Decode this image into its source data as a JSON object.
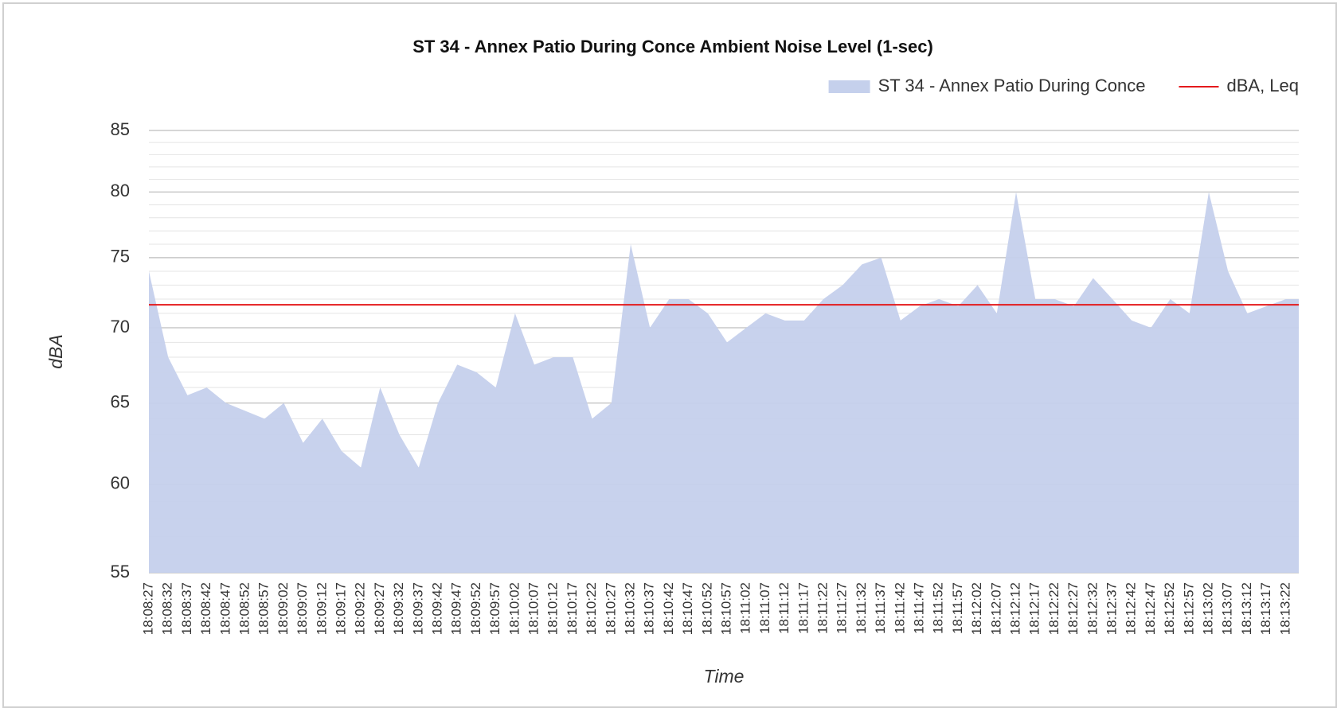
{
  "chart_data": {
    "type": "area",
    "title": "ST 34 - Annex Patio During Conce Ambient Noise Level (1-sec)",
    "xlabel": "Time",
    "ylabel": "dBA",
    "categories": [
      "18:08:27",
      "18:08:32",
      "18:08:37",
      "18:08:42",
      "18:08:47",
      "18:08:52",
      "18:08:57",
      "18:09:02",
      "18:09:07",
      "18:09:12",
      "18:09:17",
      "18:09:22",
      "18:09:27",
      "18:09:32",
      "18:09:37",
      "18:09:42",
      "18:09:47",
      "18:09:52",
      "18:09:57",
      "18:10:02",
      "18:10:07",
      "18:10:12",
      "18:10:17",
      "18:10:22",
      "18:10:27",
      "18:10:32",
      "18:10:37",
      "18:10:42",
      "18:10:47",
      "18:10:52",
      "18:10:57",
      "18:11:02",
      "18:11:07",
      "18:11:12",
      "18:11:17",
      "18:11:22",
      "18:11:27",
      "18:11:32",
      "18:11:37",
      "18:11:42",
      "18:11:47",
      "18:11:52",
      "18:11:57",
      "18:12:02",
      "18:12:07",
      "18:12:12",
      "18:12:17",
      "18:12:22",
      "18:12:27",
      "18:12:32",
      "18:12:37",
      "18:12:42",
      "18:12:47",
      "18:12:52",
      "18:12:57",
      "18:13:02",
      "18:13:07",
      "18:13:12",
      "18:13:17",
      "18:13:22"
    ],
    "series": [
      {
        "name": "ST 34 - Annex Patio During Conce",
        "color": "#c5d0ec",
        "values": [
          74,
          68,
          65.5,
          66,
          65,
          64.5,
          64,
          65,
          62.5,
          64,
          62,
          61,
          66,
          63,
          61,
          65,
          67.5,
          67,
          66,
          71,
          67.5,
          68,
          68,
          64,
          65,
          76,
          70,
          72,
          72,
          71,
          69,
          70,
          71,
          70.5,
          70.5,
          72,
          73,
          74.5,
          75,
          70.5,
          71.5,
          72,
          71.5,
          73,
          71,
          80,
          72,
          72,
          71.5,
          73.5,
          72,
          70.5,
          70,
          72,
          71,
          80,
          74,
          71,
          71.5,
          72
        ]
      }
    ],
    "lines": [
      {
        "name": "dBA, Leq",
        "color": "#e41a1c",
        "value": 71.6
      }
    ],
    "ylim": [
      55,
      85
    ],
    "yticks": [
      55,
      60,
      65,
      70,
      75,
      80,
      85
    ],
    "log_scale": true,
    "grid": true,
    "legend": "top-right"
  }
}
